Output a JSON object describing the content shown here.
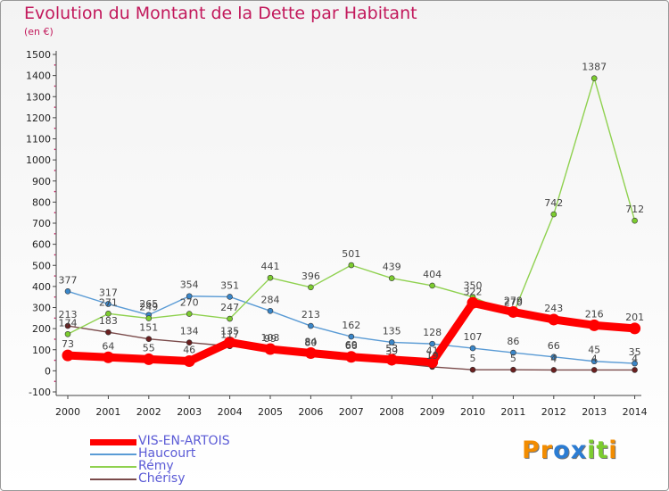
{
  "title": "Evolution du Montant de la Dette par Habitant",
  "subtitle": "(en €)",
  "logo": "Proxiti",
  "colors": {
    "title": "#c2185b",
    "legend_text": "#5b5bd6"
  },
  "chart_data": {
    "type": "line",
    "title": "Evolution du Montant de la Dette par Habitant",
    "ylabel": "(en €)",
    "x": [
      "2000",
      "2001",
      "2002",
      "2003",
      "2004",
      "2005",
      "2006",
      "2007",
      "2008",
      "2009",
      "2010",
      "2011",
      "2012",
      "2013",
      "2014"
    ],
    "ylim": [
      -100,
      1500
    ],
    "yticks": [
      -100,
      0,
      100,
      200,
      300,
      400,
      500,
      600,
      700,
      800,
      900,
      1000,
      1100,
      1200,
      1300,
      1400,
      1500
    ],
    "grid": false,
    "legend_position": "bottom-left",
    "series": [
      {
        "name": "Chérisy",
        "color": "#6b1f1f",
        "line_color": "#7a4a4a",
        "values": [
          213,
          183,
          151,
          134,
          117,
          99,
          80,
          69,
          39,
          19,
          5,
          5,
          4,
          4,
          4
        ],
        "labels": [
          "213",
          "183",
          "151",
          "134",
          "117",
          "99",
          "80",
          "69",
          "39",
          "19",
          "5",
          "5",
          "4",
          "4",
          "4"
        ]
      },
      {
        "name": "Haucourt",
        "color": "#3a86c8",
        "line_color": "#5a9bd5",
        "values": [
          377,
          317,
          265,
          354,
          351,
          284,
          213,
          162,
          135,
          128,
          107,
          86,
          66,
          45,
          35
        ],
        "labels": [
          "377",
          "317",
          "265",
          "354",
          "351",
          "284",
          "213",
          "162",
          "135",
          "128",
          "107",
          "86",
          "66",
          "45",
          "35"
        ]
      },
      {
        "name": "Rémy",
        "color": "#7ccc2f",
        "line_color": "#8fd14f",
        "values": [
          174,
          271,
          249,
          270,
          247,
          441,
          396,
          501,
          439,
          404,
          350,
          270,
          742,
          1387,
          712
        ],
        "labels": [
          "174",
          "271",
          "249",
          "270",
          "247",
          "441",
          "396",
          "501",
          "439",
          "404",
          "350",
          "270",
          "742",
          "1387",
          "712"
        ]
      },
      {
        "name": "VIS-EN-ARTOIS",
        "color": "#ff0000",
        "line_color": "#ff0000",
        "values": [
          73,
          64,
          55,
          46,
          135,
          103,
          84,
          66,
          53,
          41,
          322,
          279,
          243,
          216,
          201
        ],
        "labels": [
          "73",
          "64",
          "55",
          "46",
          "135",
          "103",
          "84",
          "66",
          "53",
          "41",
          "322",
          "279",
          "243",
          "216",
          "201"
        ]
      }
    ]
  }
}
